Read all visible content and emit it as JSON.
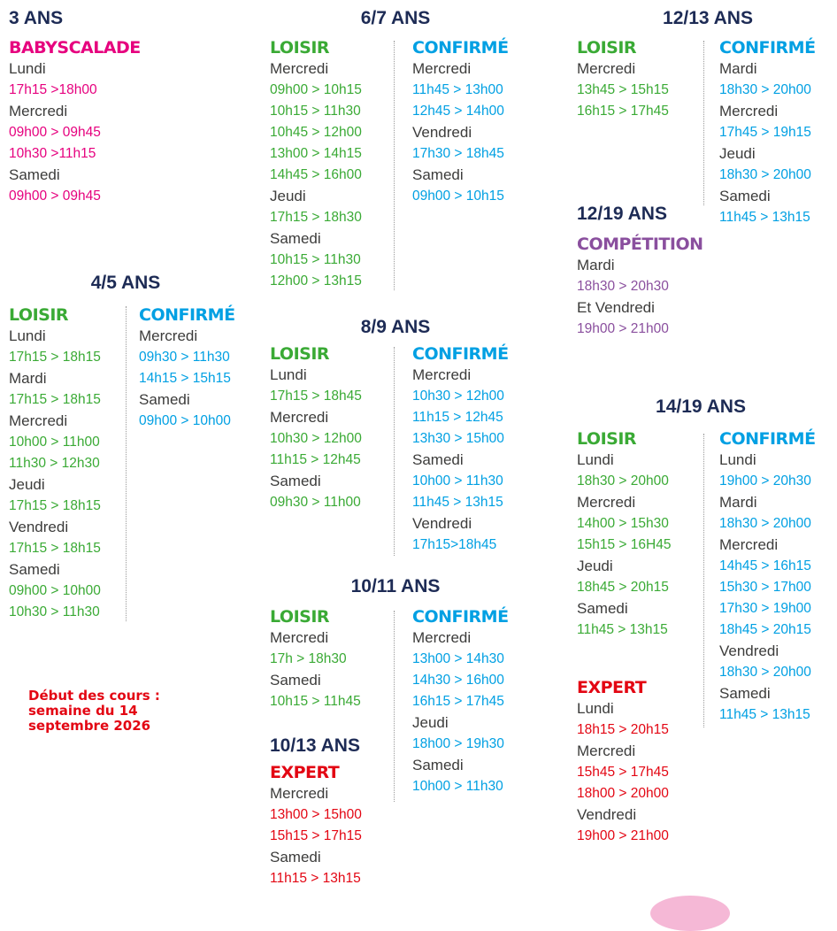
{
  "sections": [
    {
      "title": "3 ANS",
      "groups": [
        {
          "label": "BABYSCALADE",
          "color": "#e6007e",
          "days": [
            {
              "day": "Lundi",
              "times": [
                "17h15 >18h00"
              ]
            },
            {
              "day": "Mercredi",
              "times": [
                "09h00 > 09h45",
                "10h30 >11h15"
              ]
            },
            {
              "day": "Samedi",
              "times": [
                "09h00 > 09h45"
              ]
            }
          ]
        }
      ]
    },
    {
      "title": "4/5 ANS",
      "groups": [
        {
          "label": "LOISIR",
          "color": "#3aaa35",
          "days": [
            {
              "day": "Lundi",
              "times": [
                "17h15 > 18h15"
              ]
            },
            {
              "day": "Mardi",
              "times": [
                "17h15 > 18h15"
              ]
            },
            {
              "day": "Mercredi",
              "times": [
                "10h00 > 11h00",
                "11h30 > 12h30"
              ]
            },
            {
              "day": "Jeudi",
              "times": [
                "17h15 > 18h15"
              ]
            },
            {
              "day": "Vendredi",
              "times": [
                "17h15 > 18h15"
              ]
            },
            {
              "day": "Samedi",
              "times": [
                "09h00 > 10h00",
                "10h30 > 11h30"
              ]
            }
          ]
        },
        {
          "label": "CONFIRMÉ",
          "color": "#00a0e3",
          "days": [
            {
              "day": "Mercredi",
              "times": [
                "09h30 > 11h30",
                "14h15 > 15h15"
              ]
            },
            {
              "day": "Samedi",
              "times": [
                "09h00 > 10h00"
              ]
            }
          ]
        }
      ]
    },
    {
      "title": "6/7 ANS",
      "groups": [
        {
          "label": "LOISIR",
          "color": "#3aaa35",
          "days": [
            {
              "day": "Mercredi",
              "times": [
                "09h00 > 10h15",
                "10h15 > 11h30",
                "10h45 > 12h00",
                "13h00 > 14h15",
                "14h45 > 16h00"
              ]
            },
            {
              "day": "Jeudi",
              "times": [
                "17h15 > 18h30"
              ]
            },
            {
              "day": "Samedi",
              "times": [
                "10h15 > 11h30",
                "12h00 > 13h15"
              ]
            }
          ]
        },
        {
          "label": "CONFIRMÉ",
          "color": "#00a0e3",
          "days": [
            {
              "day": "Mercredi",
              "times": [
                "11h45 > 13h00",
                "12h45 > 14h00"
              ]
            },
            {
              "day": "Vendredi",
              "times": [
                "17h30 > 18h45"
              ]
            },
            {
              "day": "Samedi",
              "times": [
                "09h00 > 10h15"
              ]
            }
          ]
        }
      ]
    },
    {
      "title": "8/9 ANS",
      "groups": [
        {
          "label": "LOISIR",
          "color": "#3aaa35",
          "days": [
            {
              "day": "Lundi",
              "times": [
                "17h15 > 18h45"
              ]
            },
            {
              "day": "Mercredi",
              "times": [
                "10h30 > 12h00",
                "11h15 > 12h45"
              ]
            },
            {
              "day": "Samedi",
              "times": [
                "09h30 > 11h00"
              ]
            }
          ]
        },
        {
          "label": "CONFIRMÉ",
          "color": "#00a0e3",
          "days": [
            {
              "day": "Mercredi",
              "times": [
                "10h30 > 12h00",
                "11h15 > 12h45",
                "13h30 > 15h00"
              ]
            },
            {
              "day": "Samedi",
              "times": [
                "10h00 > 11h30",
                "11h45 > 13h15"
              ]
            },
            {
              "day": "Vendredi",
              "times": [
                "17h15>18h45"
              ]
            }
          ]
        }
      ]
    },
    {
      "title": "10/11 ANS",
      "groups": [
        {
          "label": "LOISIR",
          "color": "#3aaa35",
          "days": [
            {
              "day": "Mercredi",
              "times": [
                "17h > 18h30"
              ]
            },
            {
              "day": "Samedi",
              "times": [
                "10h15 > 11h45"
              ]
            }
          ]
        },
        {
          "label": "CONFIRMÉ",
          "color": "#00a0e3",
          "days": [
            {
              "day": "Mercredi",
              "times": [
                "13h00 > 14h30",
                "14h30 > 16h00",
                "16h15 > 17h45"
              ]
            },
            {
              "day": "Jeudi",
              "times": [
                "18h00 > 19h30"
              ]
            },
            {
              "day": "Samedi",
              "times": [
                "10h00 > 11h30"
              ]
            }
          ]
        }
      ]
    },
    {
      "title": "10/13 ANS",
      "groups": [
        {
          "label": "EXPERT",
          "color": "#e30613",
          "days": [
            {
              "day": "Mercredi",
              "times": [
                "13h00 > 15h00",
                "15h15 > 17h15"
              ]
            },
            {
              "day": "Samedi",
              "times": [
                "11h15 > 13h15"
              ]
            }
          ]
        }
      ]
    },
    {
      "title": "12/13 ANS",
      "groups": [
        {
          "label": "LOISIR",
          "color": "#3aaa35",
          "days": [
            {
              "day": "Mercredi",
              "times": [
                "13h45 > 15h15",
                "16h15 > 17h45"
              ]
            }
          ]
        },
        {
          "label": "CONFIRMÉ",
          "color": "#00a0e3",
          "days": [
            {
              "day": "Mardi",
              "times": [
                "18h30 > 20h00"
              ]
            },
            {
              "day": "Mercredi",
              "times": [
                "17h45 > 19h15"
              ]
            },
            {
              "day": "Jeudi",
              "times": [
                "18h30 > 20h00"
              ]
            },
            {
              "day": "Samedi",
              "times": [
                "11h45 > 13h15"
              ]
            }
          ]
        }
      ]
    },
    {
      "title": "12/19 ANS",
      "groups": [
        {
          "label": "COMPÉTITION",
          "color": "#8a4f9e",
          "days": [
            {
              "day": "Mardi",
              "times": [
                "18h30 > 20h30"
              ]
            },
            {
              "day": "Et Vendredi",
              "times": [
                "19h00 > 21h00"
              ]
            }
          ]
        }
      ]
    },
    {
      "title": "14/19 ANS",
      "groups": [
        {
          "label": "LOISIR",
          "color": "#3aaa35",
          "days": [
            {
              "day": "Lundi",
              "times": [
                "18h30 > 20h00"
              ]
            },
            {
              "day": "Mercredi",
              "times": [
                "14h00 > 15h30",
                "15h15 > 16H45"
              ]
            },
            {
              "day": "Jeudi",
              "times": [
                "18h45 > 20h15"
              ]
            },
            {
              "day": "Samedi",
              "times": [
                "11h45 > 13h15"
              ]
            }
          ]
        },
        {
          "label": "CONFIRMÉ",
          "color": "#00a0e3",
          "days": [
            {
              "day": "Lundi",
              "times": [
                "19h00 > 20h30"
              ]
            },
            {
              "day": "Mardi",
              "times": [
                "18h30 > 20h00"
              ]
            },
            {
              "day": "Mercredi",
              "times": [
                "14h45 > 16h15",
                "15h30 > 17h00",
                "17h30 > 19h00",
                "18h45 > 20h15"
              ]
            },
            {
              "day": "Vendredi",
              "times": [
                "18h30 > 20h00"
              ]
            },
            {
              "day": "Samedi",
              "times": [
                "11h45 > 13h15"
              ]
            }
          ]
        },
        {
          "label": "EXPERT",
          "color": "#e30613",
          "days": [
            {
              "day": "Lundi",
              "times": [
                "18h15 > 20h15"
              ]
            },
            {
              "day": "Mercredi",
              "times": [
                "15h45 > 17h45",
                "18h00 > 20h00"
              ]
            },
            {
              "day": "Vendredi",
              "times": [
                "19h00 > 21h00"
              ]
            }
          ]
        }
      ]
    }
  ],
  "note": [
    "Début des cours :",
    "semaine du 14",
    "septembre 2026"
  ]
}
